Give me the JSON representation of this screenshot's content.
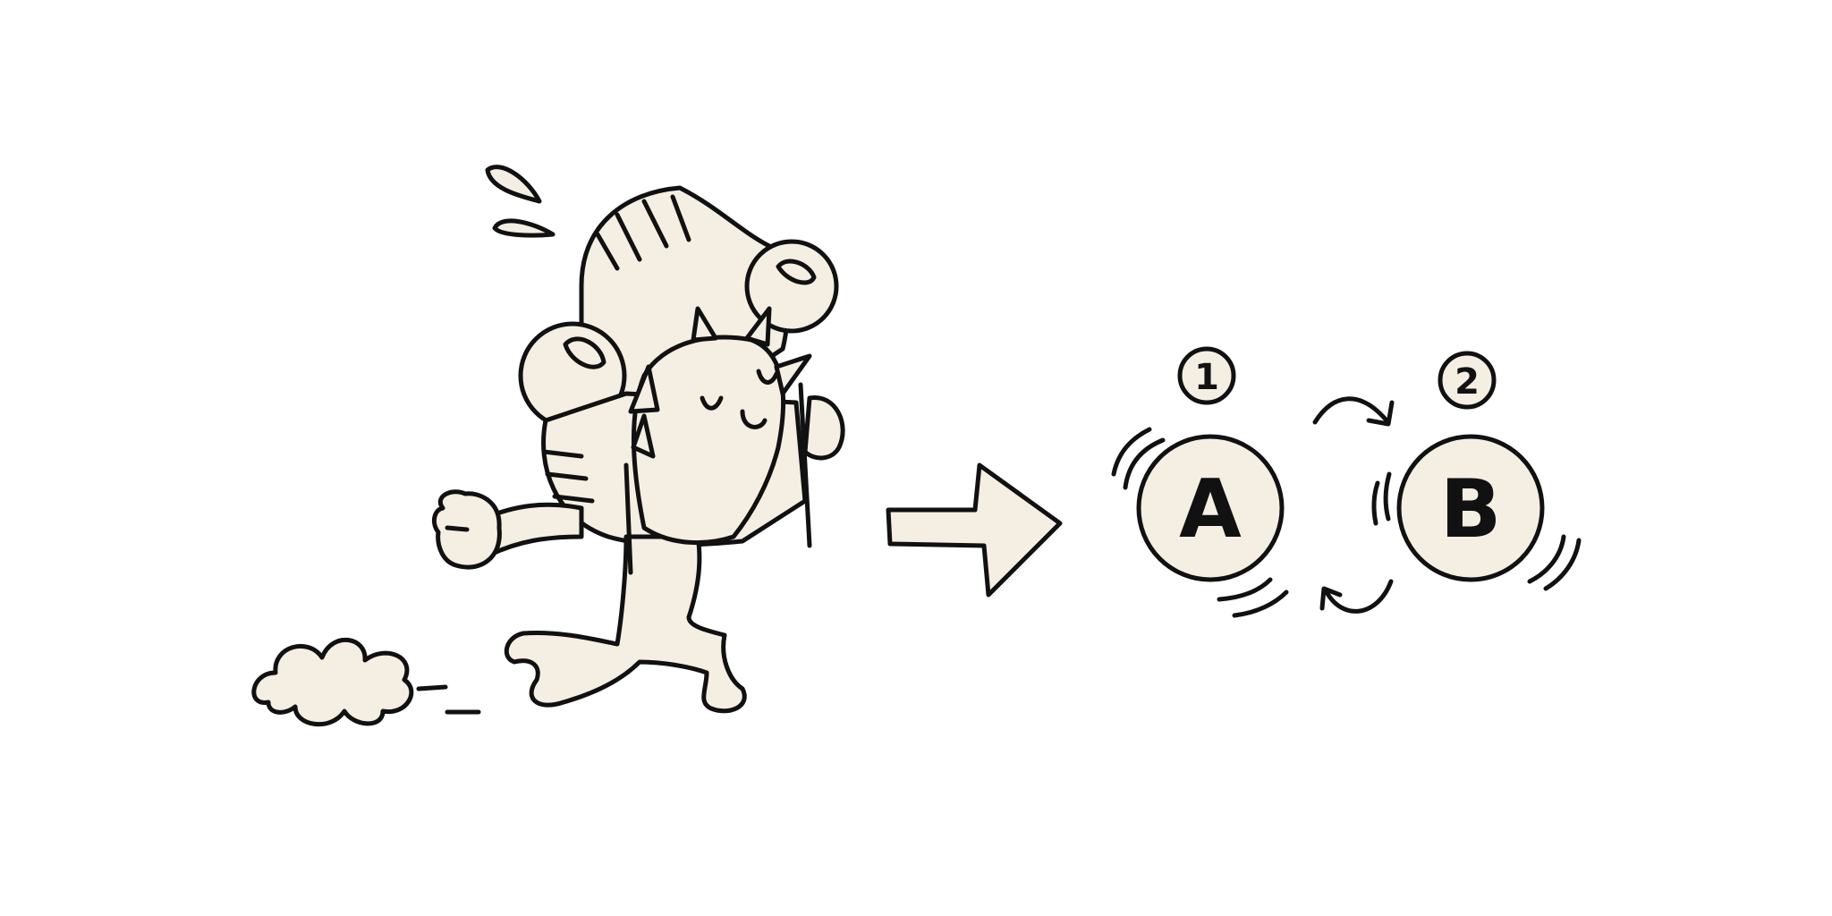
{
  "scene": {
    "background": "#ffffff",
    "fill_color": "#f4eee3",
    "ink_color": "#111111",
    "left_illustration": "running-character-icon",
    "transition": "right-arrow-icon",
    "cycle": "swap-cycle-icon"
  },
  "nodes": [
    {
      "label": "A",
      "step": "1"
    },
    {
      "label": "B",
      "step": "2"
    }
  ]
}
